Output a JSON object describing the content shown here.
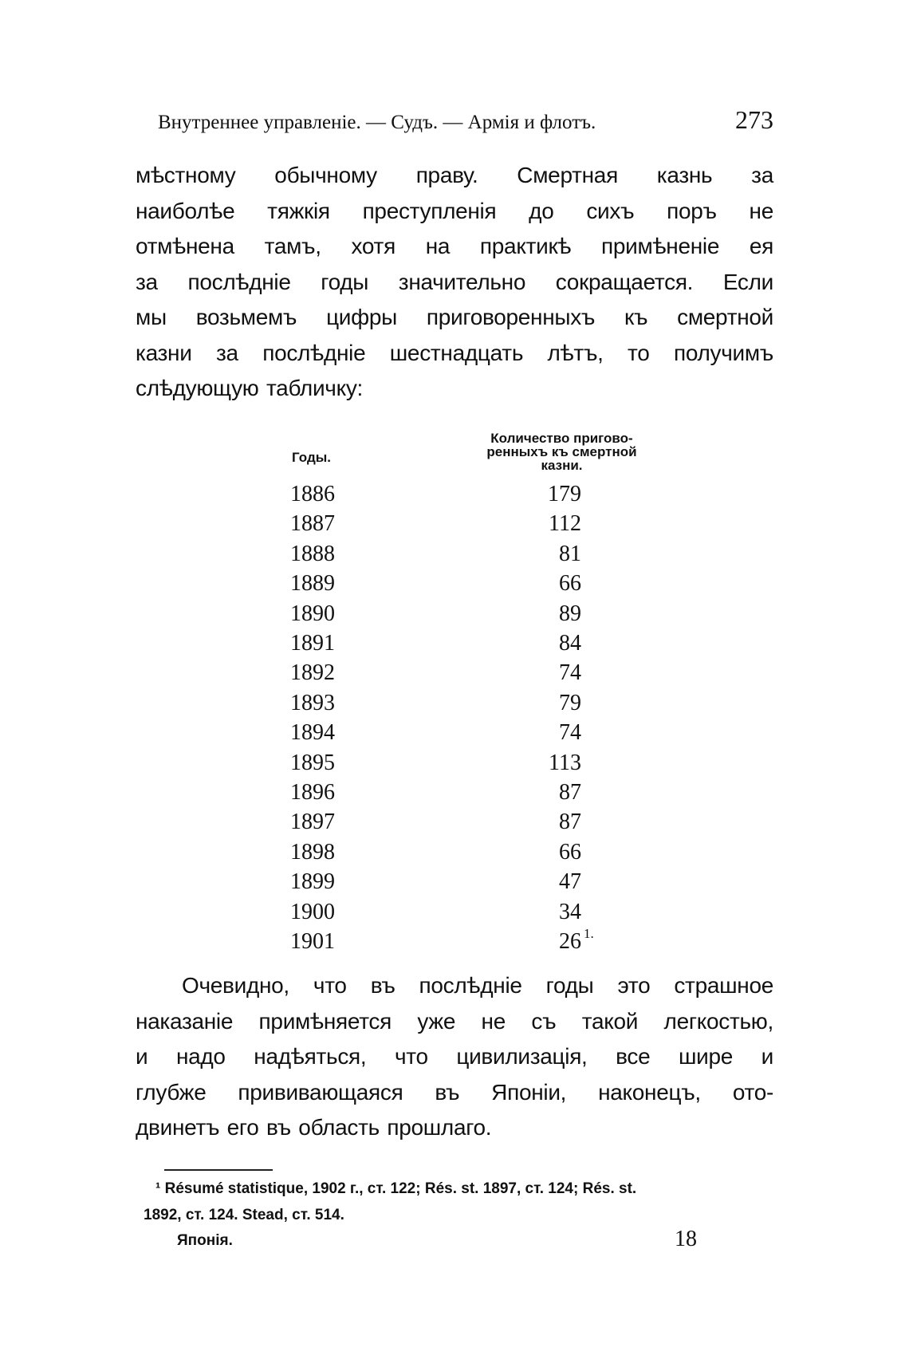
{
  "header": {
    "running_title": "Внутреннее управленіе. — Судъ. — Армія и флотъ.",
    "page_number": "273"
  },
  "paragraph1": [
    "мѣстному обычному праву. Смертная казнь за",
    "наиболѣе тяжкія преступленія до сихъ поръ не",
    "отмѣнена тамъ, хотя на практикѣ примѣненіе ея",
    "за послѣдніе годы значительно сокращается. Если",
    "мы возьмемъ цифры приговоренныхъ къ смертной",
    "казни за послѣдніе шестнадцать лѣтъ, то получимъ",
    "слѣдующую табличку:"
  ],
  "table": {
    "headers": {
      "years": "Годы.",
      "count_line1": "Количество пригово-",
      "count_line2": "ренныхъ къ смертной",
      "count_line3": "казни."
    },
    "rows": [
      {
        "year": "1886",
        "count": "179"
      },
      {
        "year": "1887",
        "count": "112"
      },
      {
        "year": "1888",
        "count": "81"
      },
      {
        "year": "1889",
        "count": "66"
      },
      {
        "year": "1890",
        "count": "89"
      },
      {
        "year": "1891",
        "count": "84"
      },
      {
        "year": "1892",
        "count": "74"
      },
      {
        "year": "1893",
        "count": "79"
      },
      {
        "year": "1894",
        "count": "74"
      },
      {
        "year": "1895",
        "count": "113"
      },
      {
        "year": "1896",
        "count": "87"
      },
      {
        "year": "1897",
        "count": "87"
      },
      {
        "year": "1898",
        "count": "66"
      },
      {
        "year": "1899",
        "count": "47"
      },
      {
        "year": "1900",
        "count": "34"
      },
      {
        "year": "1901",
        "count": "26",
        "note": "1."
      }
    ]
  },
  "paragraph2": [
    "Очевидно, что въ послѣдніе годы это страшное",
    "наказаніе примѣняется уже не съ такой легкостью,",
    "и надо надѣяться, что цивилизація, все шире и",
    "глубже прививающаяся въ Японіи, наконецъ, ото-",
    "двинетъ его въ область прошлаго."
  ],
  "footnote": {
    "line1": "¹ Résumé statistique, 1902 г., ст. 122; Rés. st. 1897, ст. 124; Rés. st.",
    "line2": "1892, ст. 124. Stead, ст. 514."
  },
  "signature": {
    "label": "Японія.",
    "sheet_number": "18"
  }
}
